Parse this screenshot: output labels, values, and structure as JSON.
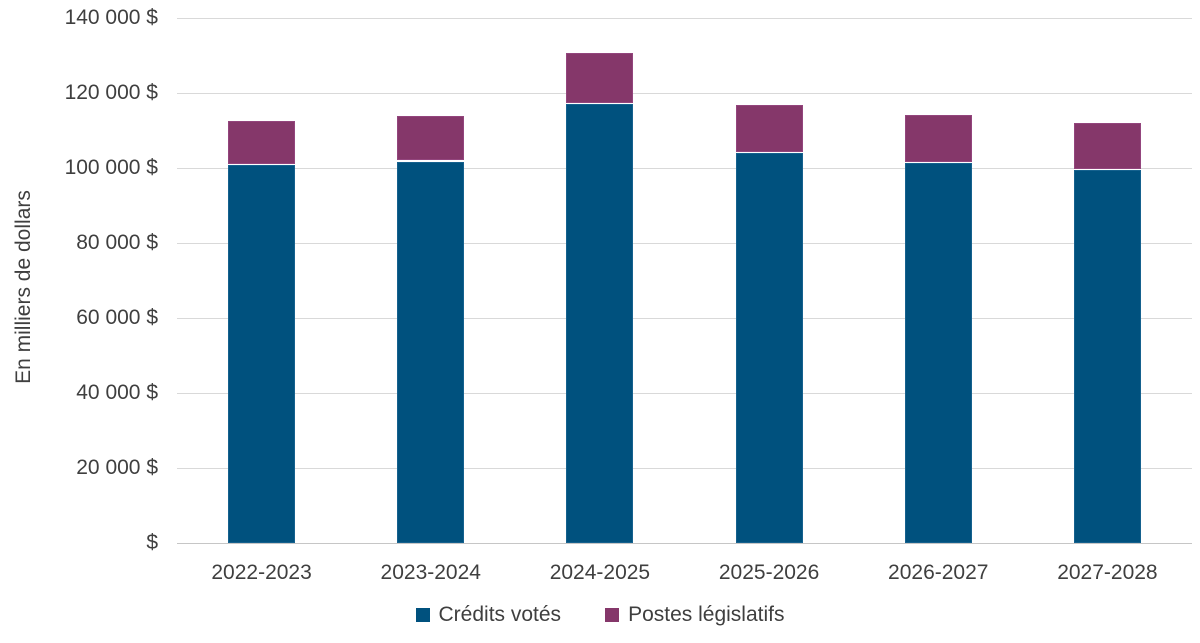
{
  "chart_data": {
    "type": "bar",
    "stacked": true,
    "title": "",
    "ylabel": "En milliers de dollars",
    "xlabel": "",
    "categories": [
      "2022-2023",
      "2023-2024",
      "2024-2025",
      "2025-2026",
      "2026-2027",
      "2027-2028"
    ],
    "series": [
      {
        "name": "Crédits votés",
        "color": "#00517e",
        "values": [
          100700,
          101700,
          117000,
          103900,
          101300,
          99400
        ]
      },
      {
        "name": "Postes législatifs",
        "color": "#85376a",
        "values": [
          11400,
          11800,
          13400,
          12600,
          12400,
          12300
        ]
      }
    ],
    "totals": [
      112100,
      113500,
      130400,
      116500,
      113700,
      111700
    ],
    "ylim": [
      0,
      140000
    ],
    "ytick_step": 20000,
    "ytick_labels": [
      "$",
      "20 000 $",
      "40 000 $",
      "60 000 $",
      "80 000 $",
      "100 000 $",
      "120 000 $",
      "140 000 $"
    ],
    "grid": true,
    "legend_position": "bottom"
  },
  "colors": {
    "credits_votes": "#00517e",
    "postes_legislatifs": "#85376a",
    "text": "#3f3f3f",
    "gridline": "#d9d9d9",
    "background": "#ffffff"
  }
}
